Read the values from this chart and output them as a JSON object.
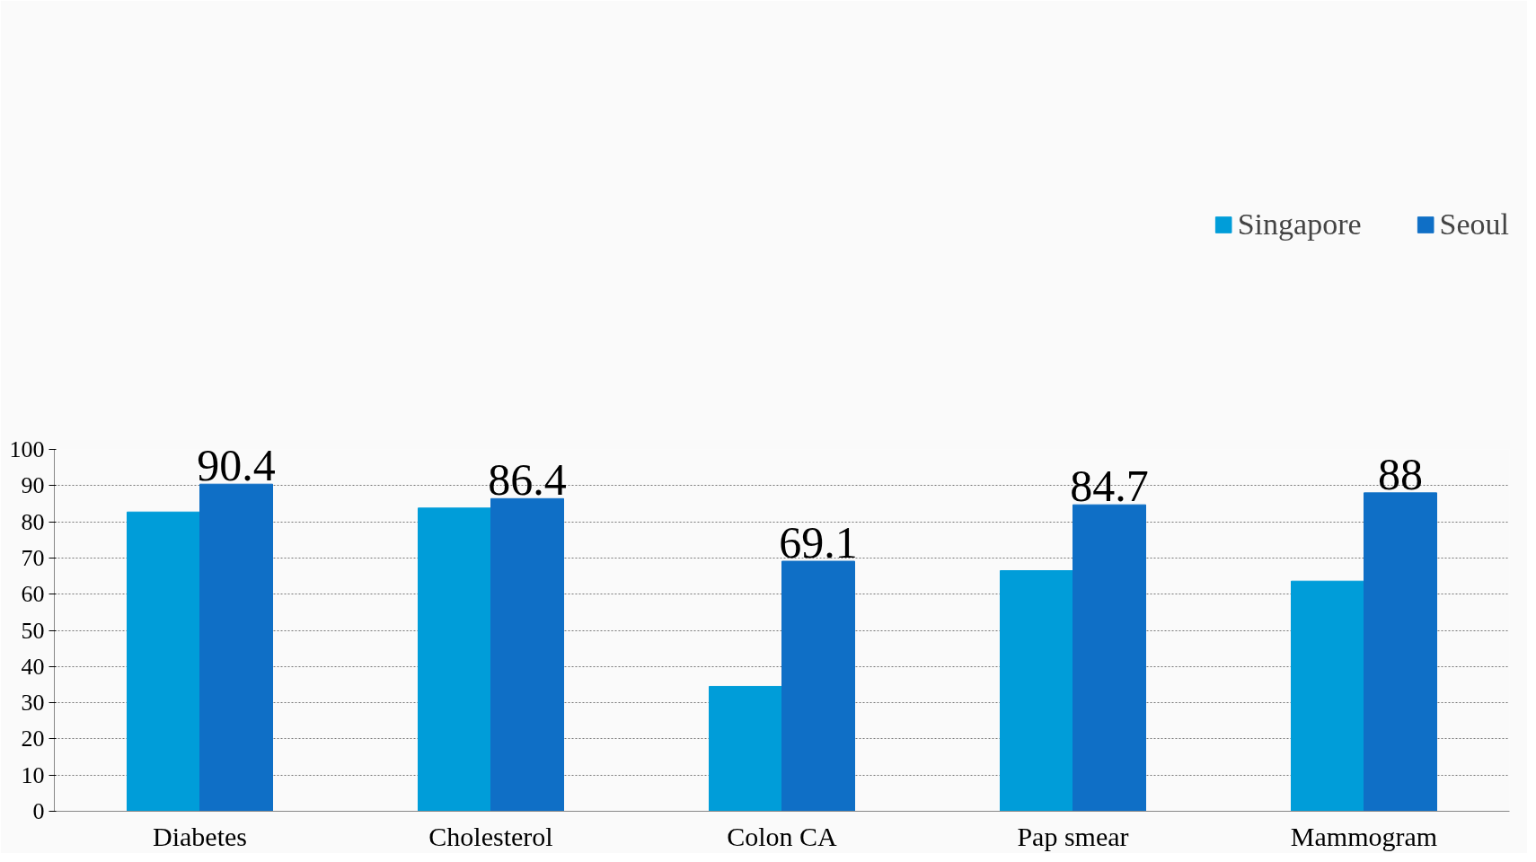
{
  "chart_data": {
    "type": "bar",
    "categories": [
      "Diabetes",
      "Cholesterol",
      "Colon CA",
      "Pap smear",
      "Mammogram"
    ],
    "series": [
      {
        "name": "Singapore",
        "color": "#009dd9",
        "values": [
          82.7,
          83.8,
          34.5,
          66.5,
          63.6
        ]
      },
      {
        "name": "Seoul",
        "color": "#0f6fc6",
        "values": [
          90.4,
          86.4,
          69.1,
          84.7,
          88
        ],
        "value_labels": [
          "90.4",
          "86.4",
          "69.1",
          "84.7",
          "88"
        ]
      }
    ],
    "ylim": [
      0,
      100
    ],
    "yticks": [
      0,
      10,
      20,
      30,
      40,
      50,
      60,
      70,
      80,
      90,
      100
    ],
    "grid": "y",
    "legend": "top right"
  }
}
